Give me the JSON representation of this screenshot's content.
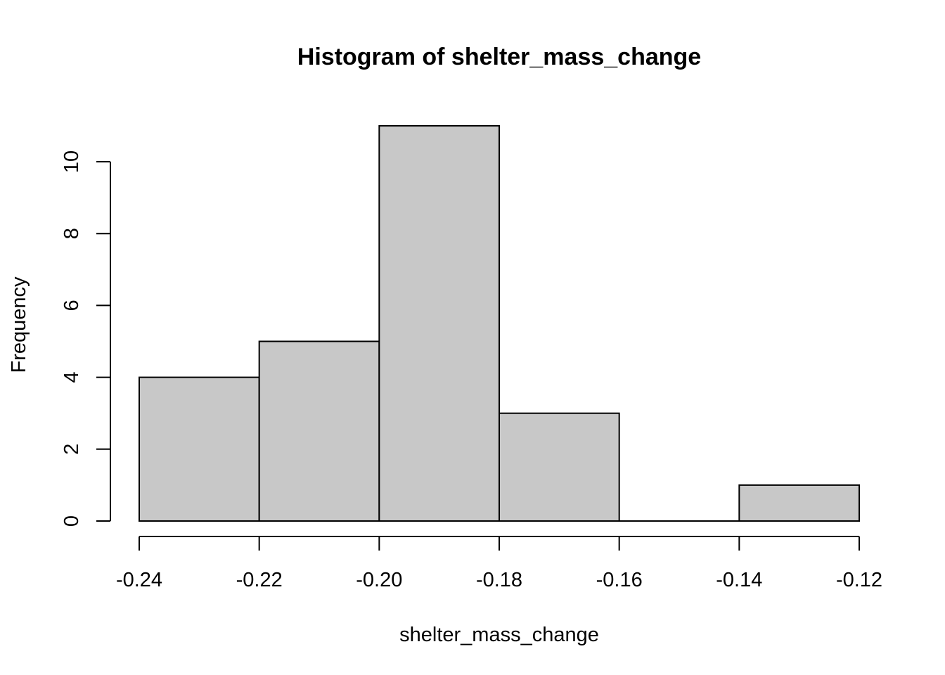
{
  "chart_data": {
    "type": "bar",
    "title": "Histogram of shelter_mass_change",
    "xlabel": "shelter_mass_change",
    "ylabel": "Frequency",
    "bins": [
      {
        "from": -0.24,
        "to": -0.22,
        "count": 4
      },
      {
        "from": -0.22,
        "to": -0.2,
        "count": 5
      },
      {
        "from": -0.2,
        "to": -0.18,
        "count": 11
      },
      {
        "from": -0.18,
        "to": -0.16,
        "count": 3
      },
      {
        "from": -0.16,
        "to": -0.14,
        "count": 0
      },
      {
        "from": -0.14,
        "to": -0.12,
        "count": 1
      }
    ],
    "xlim": [
      -0.24,
      -0.12
    ],
    "ylim": [
      0,
      10
    ],
    "xticks": [
      -0.24,
      -0.22,
      -0.2,
      -0.18,
      -0.16,
      -0.14,
      -0.12
    ],
    "xtick_labels": [
      "-0.24",
      "-0.22",
      "-0.20",
      "-0.18",
      "-0.16",
      "-0.14",
      "-0.12"
    ],
    "yticks": [
      0,
      2,
      4,
      6,
      8,
      10
    ],
    "ytick_labels": [
      "0",
      "2",
      "4",
      "6",
      "8",
      "10"
    ],
    "bar_fill": "#c8c8c8",
    "bar_edge": "#000000",
    "grid": false,
    "legend": "none"
  }
}
